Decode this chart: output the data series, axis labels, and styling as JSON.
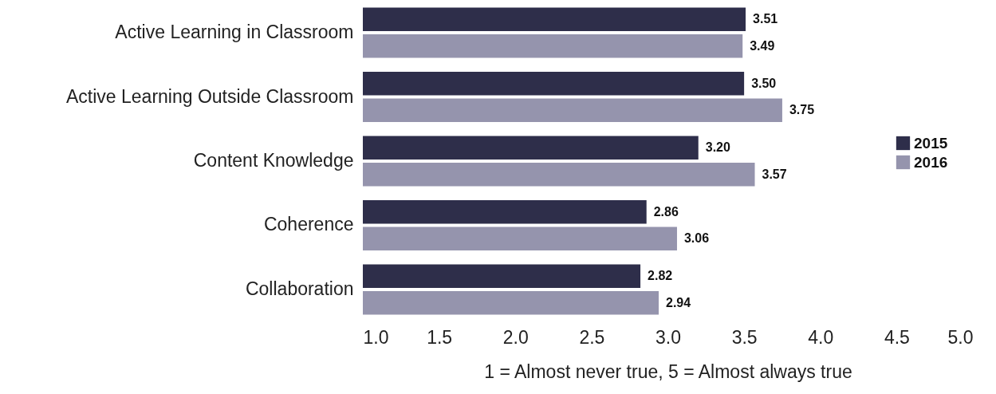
{
  "chart_data": {
    "type": "bar",
    "orientation": "horizontal",
    "xlabel": "1 = Almost never true, 5 = Almost always true",
    "categories": [
      "Active Learning in Classroom",
      "Active Learning Outside Classroom",
      "Content Knowledge",
      "Coherence",
      "Collaboration"
    ],
    "series": [
      {
        "name": "2015",
        "color": "#2e2e4a",
        "values": [
          3.51,
          3.5,
          3.2,
          2.86,
          2.82
        ],
        "value_labels": [
          "3.51",
          "3.50",
          "3.20",
          "2.86",
          "2.82"
        ]
      },
      {
        "name": "2016",
        "color": "#9594ad",
        "values": [
          3.49,
          3.75,
          3.57,
          3.06,
          2.94
        ],
        "value_labels": [
          "3.49",
          "3.75",
          "3.57",
          "3.06",
          "2.94"
        ]
      }
    ],
    "xlim": [
      1,
      5
    ],
    "xticks": [
      {
        "value": 1,
        "label": "1.0"
      },
      {
        "value": 1.5,
        "label": "1.5"
      },
      {
        "value": 2,
        "label": "2.0"
      },
      {
        "value": 2.5,
        "label": "2.5"
      },
      {
        "value": 3,
        "label": "3.0"
      },
      {
        "value": 3.5,
        "label": "3.5"
      },
      {
        "value": 4,
        "label": "4.0"
      },
      {
        "value": 4.5,
        "label": "4.5"
      },
      {
        "value": 5,
        "label": "5.0"
      }
    ],
    "legend": "right",
    "grid": false
  }
}
